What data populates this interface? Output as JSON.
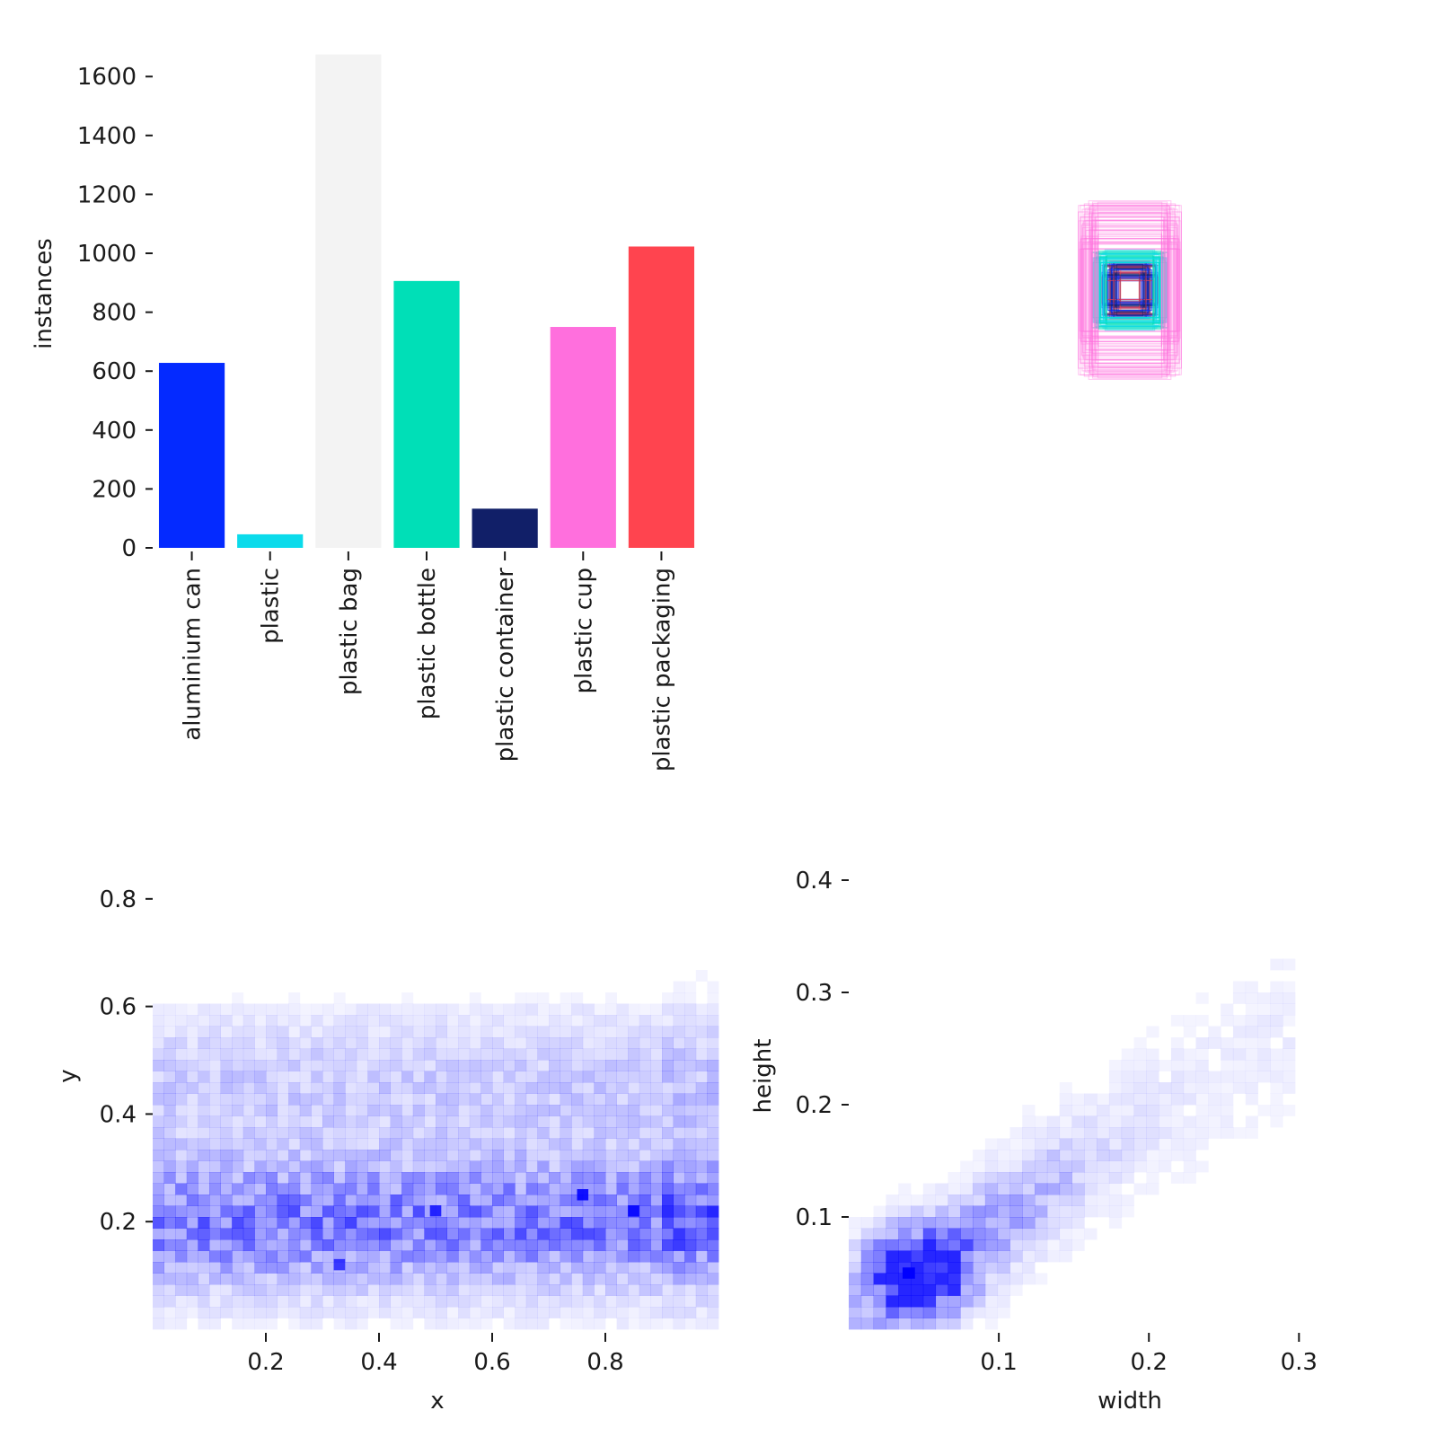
{
  "chart_data": [
    {
      "type": "bar",
      "categories": [
        "aluminium can",
        "plastic",
        "plastic bag",
        "plastic bottle",
        "plastic container",
        "plastic cup",
        "plastic packaging"
      ],
      "values": [
        628,
        46,
        1675,
        906,
        133,
        750,
        1023
      ],
      "colors": [
        "#042aff",
        "#0bdbeb",
        "#f3f3f3",
        "#00dfb7",
        "#111f68",
        "#ff6fdd",
        "#ff444f"
      ],
      "xlabel": "",
      "ylabel": "instances",
      "ylim": [
        0,
        1680
      ],
      "yticks": [
        "0",
        "200",
        "400",
        "600",
        "800",
        "1000",
        "1200",
        "1400",
        "1600"
      ],
      "grid": false
    },
    {
      "type": "box-overlay",
      "description_colors": [
        "#ff6fdd",
        "#0bdbeb",
        "#00dfb7",
        "#042aff",
        "#ff444f",
        "#111f68"
      ],
      "axes": "off"
    },
    {
      "type": "heatmap",
      "xlabel": "x",
      "ylabel": "y",
      "xlim": [
        0.0,
        1.0
      ],
      "ylim": [
        0.0,
        0.96
      ],
      "xticks": [
        "0.2",
        "0.4",
        "0.6",
        "0.8"
      ],
      "yticks": [
        "0.2",
        "0.4",
        "0.6",
        "0.8"
      ],
      "color": "#0000ff",
      "hotspots": [
        {
          "x": 0.33,
          "y": 0.12,
          "w": 0.7
        },
        {
          "x": 0.5,
          "y": 0.22,
          "w": 0.8
        },
        {
          "x": 0.76,
          "y": 0.25,
          "w": 0.9
        },
        {
          "x": 0.85,
          "y": 0.22,
          "w": 0.85
        }
      ],
      "grid": false
    },
    {
      "type": "heatmap",
      "xlabel": "width",
      "ylabel": "height",
      "xlim": [
        0.0,
        0.38
      ],
      "ylim": [
        0.0,
        0.46
      ],
      "xticks": [
        "0.1",
        "0.2",
        "0.3"
      ],
      "yticks": [
        "0.1",
        "0.2",
        "0.3",
        "0.4"
      ],
      "color": "#0000ff",
      "hotspots": [
        {
          "x": 0.04,
          "y": 0.05,
          "w": 1.0
        }
      ],
      "grid": false
    }
  ]
}
